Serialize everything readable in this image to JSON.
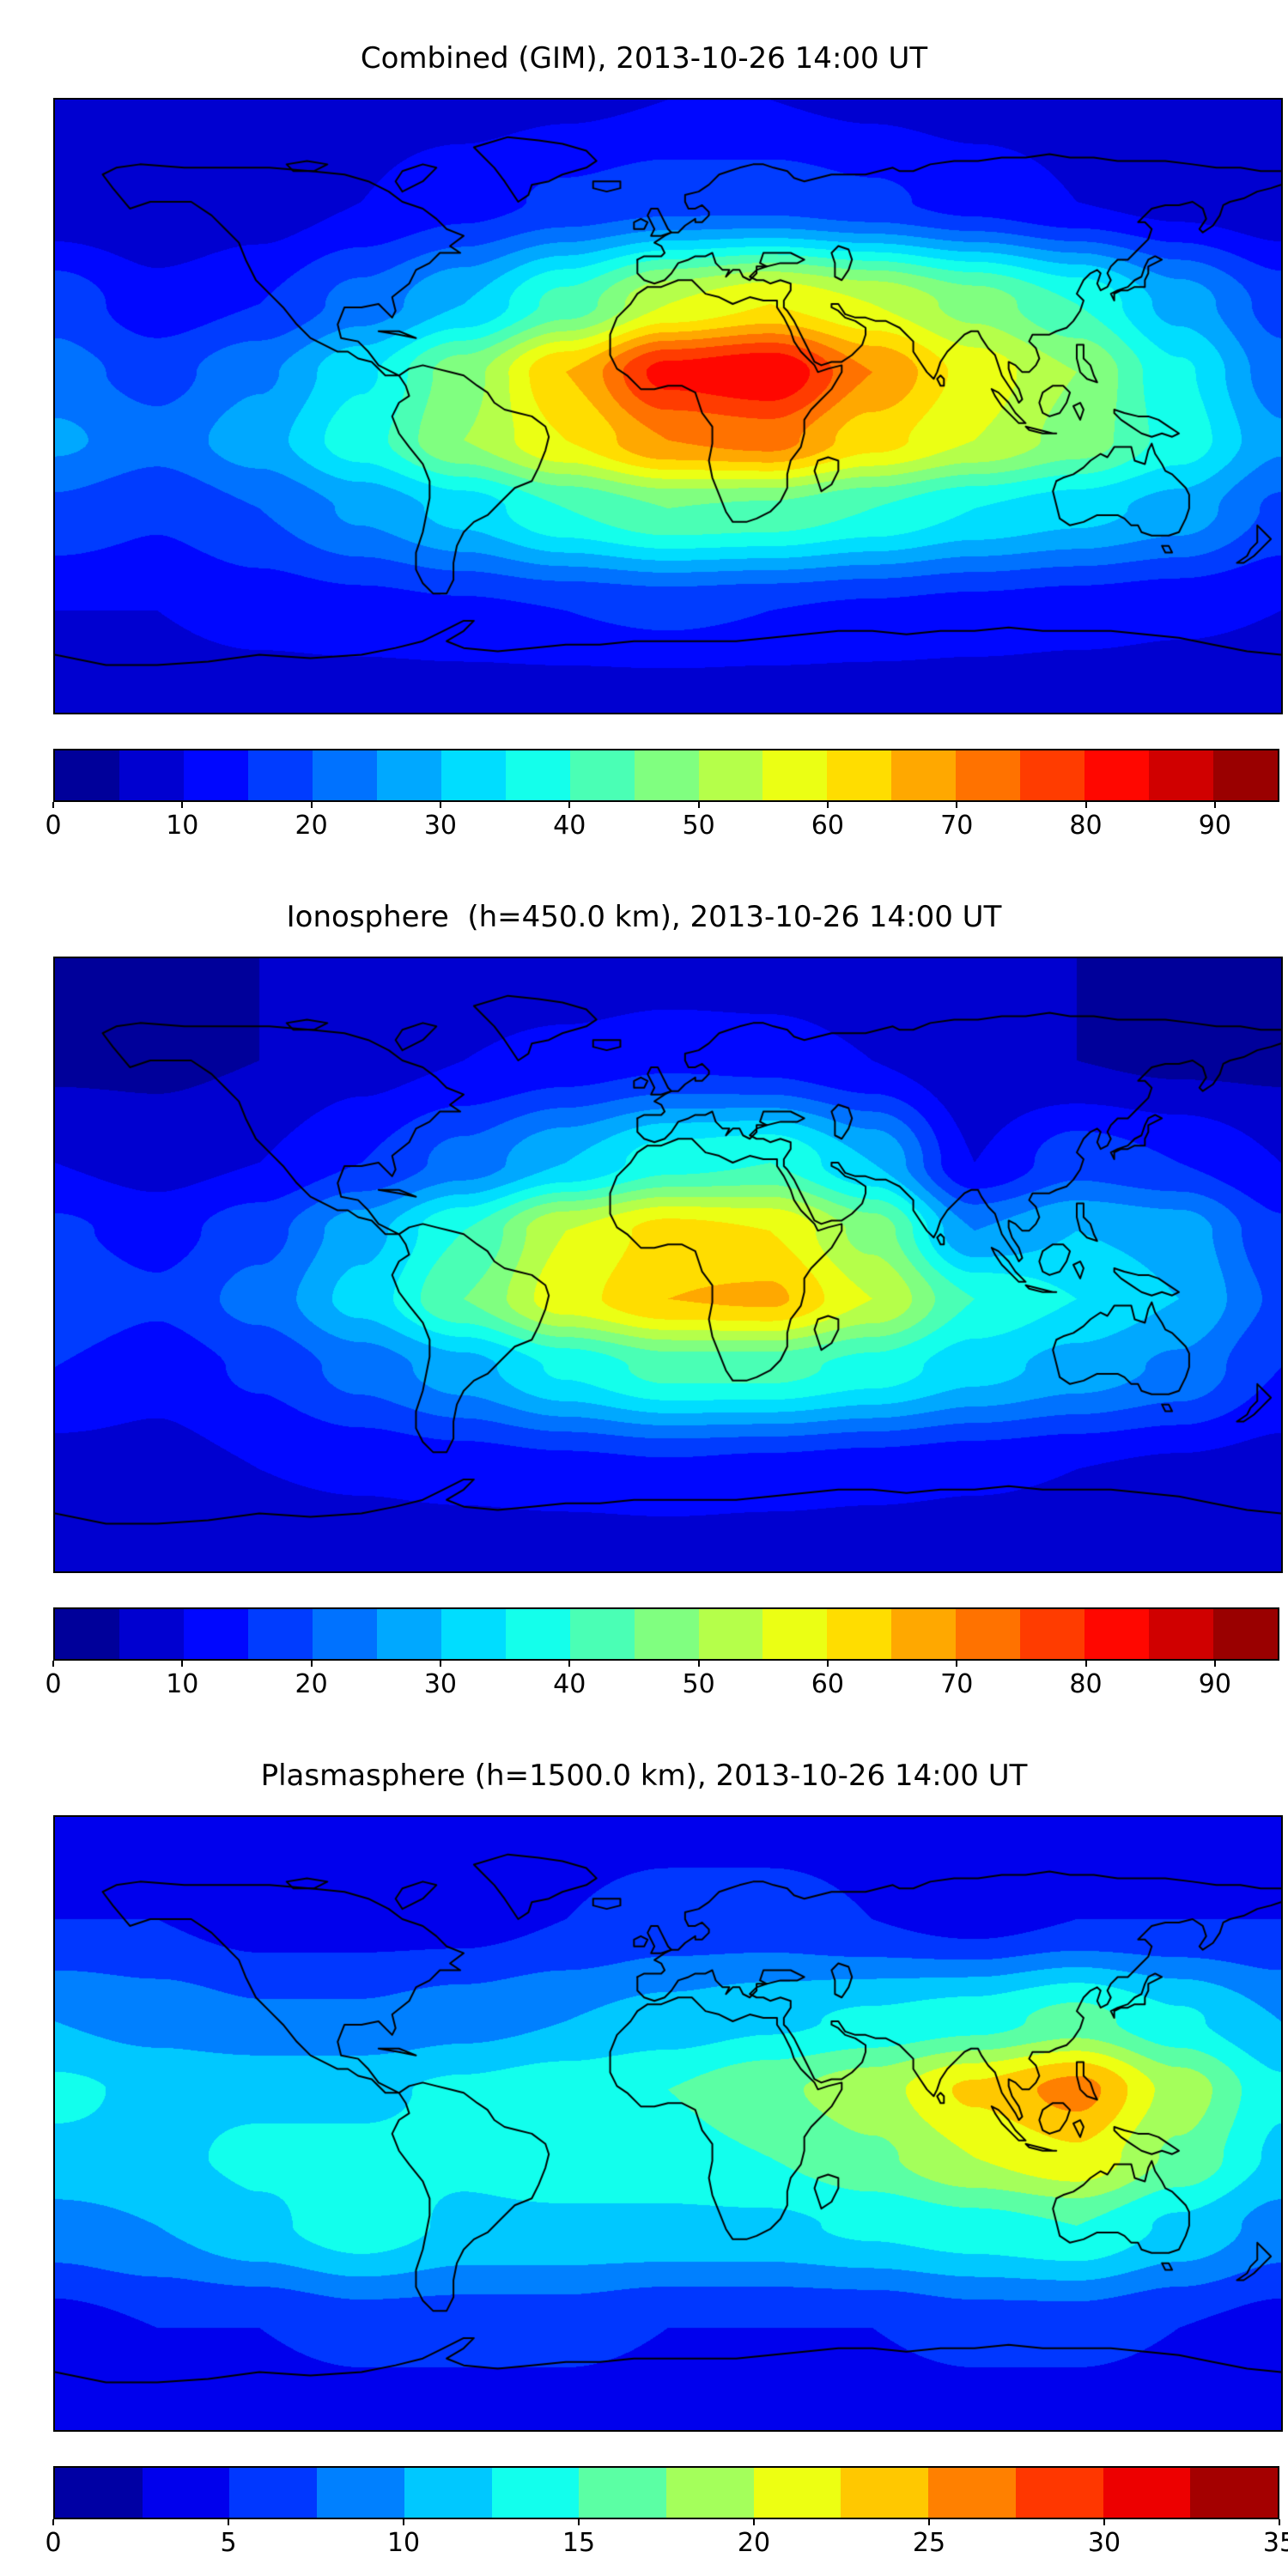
{
  "style": {
    "background": "#ffffff",
    "coastline_color": "#000000",
    "frame_color": "#000000",
    "colormap_name": "jet"
  },
  "chart_data": [
    {
      "type": "heatmap",
      "title": "Combined (GIM), 2013-10-26 14:00 UT",
      "projection": "equirectangular",
      "xlabel": "",
      "ylabel": "",
      "extent": {
        "lon": [
          -180,
          180
        ],
        "lat": [
          -90,
          90
        ]
      },
      "grid": false,
      "legend": "colorbar-bottom",
      "colormap": "jet",
      "vmin": 0,
      "vmax": 95,
      "contour_step": 5,
      "colorbar_ticks": [
        0,
        10,
        20,
        30,
        40,
        50,
        60,
        70,
        80,
        90
      ],
      "x_lon": [
        -180,
        -150,
        -120,
        -90,
        -60,
        -30,
        0,
        30,
        60,
        90,
        120,
        150,
        180
      ],
      "y_lat": [
        90,
        60,
        30,
        10,
        -10,
        -30,
        -60,
        -90
      ],
      "values": [
        [
          8,
          8,
          8,
          8,
          8,
          9,
          10,
          10,
          9,
          8,
          8,
          8,
          8
        ],
        [
          6,
          5,
          7,
          10,
          13,
          16,
          18,
          18,
          16,
          13,
          10,
          8,
          6
        ],
        [
          18,
          12,
          15,
          22,
          30,
          42,
          55,
          60,
          55,
          48,
          40,
          28,
          18
        ],
        [
          22,
          18,
          24,
          34,
          48,
          65,
          82,
          85,
          70,
          58,
          50,
          36,
          22
        ],
        [
          26,
          22,
          28,
          38,
          50,
          60,
          70,
          72,
          62,
          55,
          48,
          38,
          26
        ],
        [
          19,
          16,
          20,
          26,
          32,
          40,
          45,
          44,
          40,
          35,
          32,
          28,
          19
        ],
        [
          10,
          10,
          12,
          13,
          14,
          15,
          16,
          15,
          14,
          13,
          12,
          11,
          10
        ],
        [
          6,
          6,
          6,
          6,
          6,
          6,
          6,
          6,
          6,
          6,
          6,
          6,
          6
        ]
      ]
    },
    {
      "type": "heatmap",
      "title": "Ionosphere  (h=450.0 km), 2013-10-26 14:00 UT",
      "projection": "equirectangular",
      "xlabel": "",
      "ylabel": "",
      "extent": {
        "lon": [
          -180,
          180
        ],
        "lat": [
          -90,
          90
        ]
      },
      "grid": false,
      "legend": "colorbar-bottom",
      "colormap": "jet",
      "vmin": 0,
      "vmax": 95,
      "contour_step": 5,
      "colorbar_ticks": [
        0,
        10,
        20,
        30,
        40,
        50,
        60,
        70,
        80,
        90
      ],
      "x_lon": [
        -180,
        -150,
        -120,
        -90,
        -60,
        -30,
        0,
        30,
        60,
        90,
        120,
        150,
        180
      ],
      "y_lat": [
        90,
        60,
        30,
        10,
        -10,
        -30,
        -60,
        -90
      ],
      "values": [
        [
          5,
          5,
          5,
          5,
          5,
          5,
          6,
          6,
          5,
          5,
          5,
          5,
          5
        ],
        [
          4,
          4,
          5,
          8,
          10,
          12,
          14,
          13,
          10,
          6,
          5,
          4,
          4
        ],
        [
          10,
          8,
          10,
          15,
          22,
          30,
          38,
          40,
          30,
          10,
          18,
          15,
          10
        ],
        [
          16,
          13,
          18,
          28,
          40,
          55,
          62,
          60,
          48,
          25,
          30,
          28,
          16
        ],
        [
          19,
          16,
          22,
          32,
          45,
          58,
          65,
          66,
          55,
          40,
          35,
          30,
          19
        ],
        [
          15,
          12,
          16,
          22,
          28,
          36,
          42,
          42,
          38,
          32,
          28,
          24,
          15
        ],
        [
          8,
          8,
          10,
          11,
          12,
          13,
          14,
          13,
          12,
          11,
          10,
          9,
          8
        ],
        [
          5,
          5,
          5,
          5,
          5,
          5,
          5,
          5,
          5,
          5,
          5,
          5,
          5
        ]
      ]
    },
    {
      "type": "heatmap",
      "title": "Plasmasphere (h=1500.0 km), 2013-10-26 14:00 UT",
      "projection": "equirectangular",
      "xlabel": "",
      "ylabel": "",
      "extent": {
        "lon": [
          -180,
          180
        ],
        "lat": [
          -90,
          90
        ]
      },
      "grid": false,
      "legend": "colorbar-bottom",
      "colormap": "jet",
      "vmin": 0,
      "vmax": 35,
      "contour_step": 2.5,
      "colorbar_ticks": [
        0,
        5,
        10,
        15,
        20,
        25,
        30,
        35
      ],
      "x_lon": [
        -180,
        -150,
        -120,
        -90,
        -60,
        -30,
        0,
        30,
        60,
        90,
        120,
        150,
        180
      ],
      "y_lat": [
        90,
        60,
        30,
        10,
        -10,
        -30,
        -60,
        -90
      ],
      "values": [
        [
          4,
          4,
          4,
          4,
          4,
          4,
          4,
          4,
          4,
          4,
          4,
          4,
          4
        ],
        [
          5,
          5,
          4,
          4,
          4,
          5,
          6,
          6,
          5,
          4,
          5,
          5,
          5
        ],
        [
          10,
          9,
          8,
          8,
          9,
          10,
          11,
          12,
          13,
          14,
          16,
          13,
          10
        ],
        [
          13,
          12,
          12,
          12,
          13,
          14,
          15,
          17,
          19,
          23,
          26,
          19,
          13
        ],
        [
          12,
          12,
          13,
          13,
          13,
          14,
          14,
          15,
          17,
          20,
          22,
          17,
          12
        ],
        [
          9,
          10,
          12,
          14,
          12,
          12,
          12,
          12,
          13,
          14,
          15,
          12,
          9
        ],
        [
          4,
          5,
          5,
          6,
          6,
          6,
          5,
          5,
          5,
          6,
          6,
          5,
          4
        ],
        [
          3,
          3,
          3,
          3,
          3,
          3,
          3,
          3,
          3,
          3,
          3,
          3,
          3
        ]
      ]
    }
  ]
}
